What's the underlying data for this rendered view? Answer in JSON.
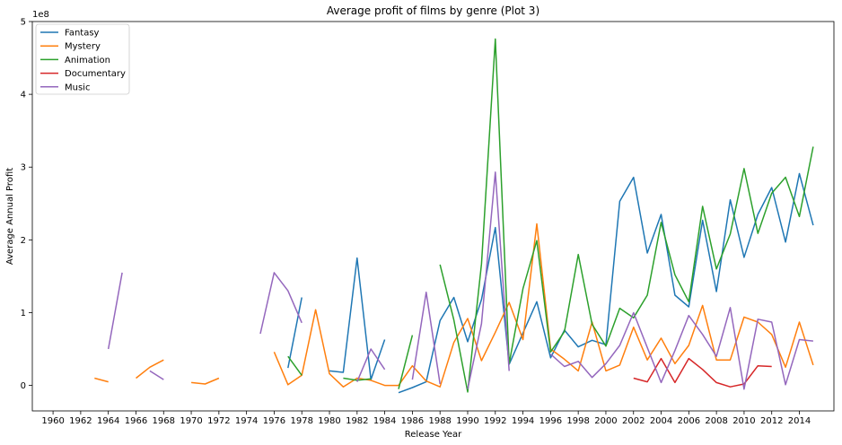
{
  "chart_data": {
    "type": "line",
    "title": "Average profit of films by genre (Plot 3)",
    "xlabel": "Release Year",
    "ylabel": "Average Annual Profit",
    "y_multiplier_label": "1e8",
    "xlim": [
      1958.5,
      2016.5
    ],
    "ylim": [
      -0.35,
      5.0
    ],
    "x_ticks": [
      1960,
      1962,
      1964,
      1966,
      1968,
      1970,
      1972,
      1974,
      1976,
      1978,
      1980,
      1982,
      1984,
      1986,
      1988,
      1990,
      1992,
      1994,
      1996,
      1998,
      2000,
      2002,
      2004,
      2006,
      2008,
      2010,
      2012,
      2014
    ],
    "y_ticks": [
      0,
      1,
      2,
      3,
      4,
      5
    ],
    "legend_position": "top-left",
    "grid": false,
    "series": [
      {
        "name": "Fantasy",
        "color": "#1f77b4",
        "points": [
          [
            1977,
            0.24
          ],
          [
            1978,
            1.21
          ],
          [
            null,
            null
          ],
          [
            1980,
            0.2
          ],
          [
            1981,
            0.18
          ],
          [
            1982,
            1.75
          ],
          [
            1983,
            0.08
          ],
          [
            1984,
            0.63
          ],
          [
            null,
            null
          ],
          [
            1985,
            -0.1
          ],
          [
            1986,
            -0.03
          ],
          [
            1987,
            0.05
          ],
          [
            1988,
            0.89
          ],
          [
            1989,
            1.21
          ],
          [
            1990,
            0.6
          ],
          [
            1991,
            1.18
          ],
          [
            1992,
            2.17
          ],
          [
            1993,
            0.29
          ],
          [
            1994,
            0.72
          ],
          [
            1995,
            1.15
          ],
          [
            1996,
            0.38
          ],
          [
            1997,
            0.76
          ],
          [
            1998,
            0.53
          ],
          [
            1999,
            0.62
          ],
          [
            2000,
            0.56
          ],
          [
            2001,
            2.53
          ],
          [
            2002,
            2.86
          ],
          [
            2003,
            1.82
          ],
          [
            2004,
            2.35
          ],
          [
            2005,
            1.24
          ],
          [
            2006,
            1.08
          ],
          [
            2007,
            2.27
          ],
          [
            2008,
            1.29
          ],
          [
            2009,
            2.55
          ],
          [
            2010,
            1.76
          ],
          [
            2011,
            2.35
          ],
          [
            2012,
            2.72
          ],
          [
            2013,
            1.97
          ],
          [
            2014,
            2.91
          ],
          [
            2015,
            2.2
          ]
        ]
      },
      {
        "name": "Mystery",
        "color": "#ff7f0e",
        "points": [
          [
            1963,
            0.1
          ],
          [
            1964,
            0.05
          ],
          [
            null,
            null
          ],
          [
            1966,
            0.1
          ],
          [
            1967,
            0.25
          ],
          [
            1968,
            0.35
          ],
          [
            null,
            null
          ],
          [
            1970,
            0.04
          ],
          [
            1971,
            0.02
          ],
          [
            1972,
            0.1
          ],
          [
            null,
            null
          ],
          [
            1976,
            0.46
          ],
          [
            1977,
            0.01
          ],
          [
            1978,
            0.14
          ],
          [
            1979,
            1.04
          ],
          [
            1980,
            0.16
          ],
          [
            1981,
            -0.02
          ],
          [
            1982,
            0.1
          ],
          [
            1983,
            0.07
          ],
          [
            1984,
            0.0
          ],
          [
            1985,
            0.0
          ],
          [
            1986,
            0.27
          ],
          [
            1987,
            0.06
          ],
          [
            1988,
            -0.02
          ],
          [
            1989,
            0.59
          ],
          [
            1990,
            0.92
          ],
          [
            1991,
            0.34
          ],
          [
            1992,
            0.73
          ],
          [
            1993,
            1.14
          ],
          [
            1994,
            0.63
          ],
          [
            1995,
            2.22
          ],
          [
            1996,
            0.5
          ],
          [
            1997,
            0.36
          ],
          [
            1998,
            0.2
          ],
          [
            1999,
            0.87
          ],
          [
            2000,
            0.2
          ],
          [
            2001,
            0.28
          ],
          [
            2002,
            0.8
          ],
          [
            2003,
            0.35
          ],
          [
            2004,
            0.65
          ],
          [
            2005,
            0.3
          ],
          [
            2006,
            0.55
          ],
          [
            2007,
            1.1
          ],
          [
            2008,
            0.35
          ],
          [
            2009,
            0.35
          ],
          [
            2010,
            0.94
          ],
          [
            2011,
            0.87
          ],
          [
            2012,
            0.7
          ],
          [
            2013,
            0.25
          ],
          [
            2014,
            0.87
          ],
          [
            2015,
            0.28
          ]
        ]
      },
      {
        "name": "Animation",
        "color": "#2ca02c",
        "points": [
          [
            1977,
            0.4
          ],
          [
            1978,
            0.14
          ],
          [
            null,
            null
          ],
          [
            1981,
            0.1
          ],
          [
            1982,
            0.07
          ],
          [
            1983,
            0.09
          ],
          [
            null,
            null
          ],
          [
            1985,
            -0.05
          ],
          [
            1986,
            0.69
          ],
          [
            null,
            null
          ],
          [
            1988,
            1.66
          ],
          [
            1989,
            0.9
          ],
          [
            1990,
            -0.09
          ],
          [
            1991,
            1.67
          ],
          [
            1992,
            4.76
          ],
          [
            1993,
            0.3
          ],
          [
            1994,
            1.33
          ],
          [
            1995,
            1.99
          ],
          [
            1996,
            0.46
          ],
          [
            1997,
            0.74
          ],
          [
            1998,
            1.8
          ],
          [
            1999,
            0.84
          ],
          [
            2000,
            0.54
          ],
          [
            2001,
            1.06
          ],
          [
            2002,
            0.93
          ],
          [
            2003,
            1.24
          ],
          [
            2004,
            2.24
          ],
          [
            2005,
            1.52
          ],
          [
            2006,
            1.15
          ],
          [
            2007,
            2.46
          ],
          [
            2008,
            1.6
          ],
          [
            2009,
            2.08
          ],
          [
            2010,
            2.98
          ],
          [
            2011,
            2.09
          ],
          [
            2012,
            2.64
          ],
          [
            2013,
            2.86
          ],
          [
            2014,
            2.32
          ],
          [
            2015,
            3.28
          ]
        ]
      },
      {
        "name": "Documentary",
        "color": "#d62728",
        "points": [
          [
            2002,
            0.1
          ],
          [
            2003,
            0.05
          ],
          [
            2004,
            0.37
          ],
          [
            2005,
            0.04
          ],
          [
            2006,
            0.37
          ],
          [
            2007,
            0.22
          ],
          [
            2008,
            0.04
          ],
          [
            2009,
            -0.02
          ],
          [
            2010,
            0.02
          ],
          [
            2011,
            0.27
          ],
          [
            2012,
            0.26
          ]
        ]
      },
      {
        "name": "Music",
        "color": "#9467bd",
        "points": [
          [
            1964,
            0.5
          ],
          [
            1965,
            1.55
          ],
          [
            null,
            null
          ],
          [
            1967,
            0.2
          ],
          [
            1968,
            0.08
          ],
          [
            null,
            null
          ],
          [
            1975,
            0.71
          ],
          [
            1976,
            1.55
          ],
          [
            1977,
            1.3
          ],
          [
            1978,
            0.86
          ],
          [
            null,
            null
          ],
          [
            1982,
            0.05
          ],
          [
            1983,
            0.5
          ],
          [
            1984,
            0.22
          ],
          [
            null,
            null
          ],
          [
            1986,
            0.08
          ],
          [
            1987,
            1.28
          ],
          [
            1988,
            0.02
          ],
          [
            null,
            null
          ],
          [
            1990,
            -0.05
          ],
          [
            1991,
            0.85
          ],
          [
            1992,
            2.93
          ],
          [
            1993,
            0.2
          ],
          [
            null,
            null
          ],
          [
            1996,
            0.43
          ],
          [
            1997,
            0.26
          ],
          [
            1998,
            0.33
          ],
          [
            1999,
            0.11
          ],
          [
            2000,
            0.3
          ],
          [
            2001,
            0.55
          ],
          [
            2002,
            1.0
          ],
          [
            2003,
            0.52
          ],
          [
            2004,
            0.04
          ],
          [
            2005,
            0.48
          ],
          [
            2006,
            0.96
          ],
          [
            2007,
            0.7
          ],
          [
            2008,
            0.4
          ],
          [
            2009,
            1.07
          ],
          [
            2010,
            -0.05
          ],
          [
            2011,
            0.91
          ],
          [
            2012,
            0.87
          ],
          [
            2013,
            0.01
          ],
          [
            2014,
            0.63
          ],
          [
            2015,
            0.61
          ]
        ]
      }
    ]
  }
}
